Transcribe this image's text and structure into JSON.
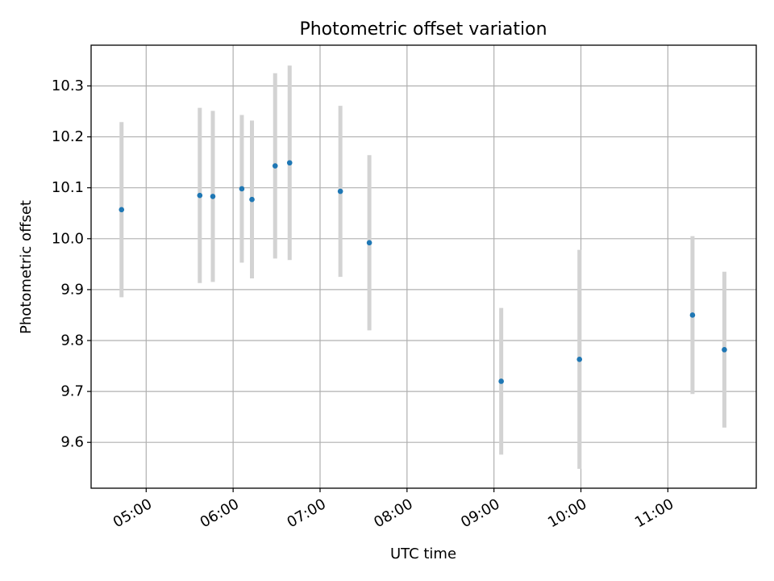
{
  "chart_data": {
    "type": "scatter",
    "title": "Photometric offset variation",
    "xlabel": "UTC time",
    "ylabel": "Photometric offset",
    "xlim": [
      "04:22",
      "12:01"
    ],
    "ylim": [
      9.51,
      10.38
    ],
    "x_ticks": [
      "05:00",
      "06:00",
      "07:00",
      "08:00",
      "09:00",
      "10:00",
      "11:00"
    ],
    "y_ticks": [
      "9.6",
      "9.7",
      "9.8",
      "9.9",
      "10.0",
      "10.1",
      "10.2",
      "10.3"
    ],
    "grid": true,
    "marker_color": "#1f77b4",
    "errorbar_color": "#d3d3d3",
    "series": [
      {
        "points": [
          {
            "x": "04:43",
            "y": 10.057,
            "yerr": 0.172
          },
          {
            "x": "05:37",
            "y": 10.085,
            "yerr": 0.172
          },
          {
            "x": "05:46",
            "y": 10.083,
            "yerr": 0.168
          },
          {
            "x": "06:06",
            "y": 10.098,
            "yerr": 0.145
          },
          {
            "x": "06:13",
            "y": 10.077,
            "yerr": 0.155
          },
          {
            "x": "06:29",
            "y": 10.143,
            "yerr": 0.182
          },
          {
            "x": "06:39",
            "y": 10.149,
            "yerr": 0.191
          },
          {
            "x": "07:14",
            "y": 10.093,
            "yerr": 0.168
          },
          {
            "x": "07:34",
            "y": 9.992,
            "yerr": 0.172
          },
          {
            "x": "09:05",
            "y": 9.72,
            "yerr": 0.144
          },
          {
            "x": "09:59",
            "y": 9.763,
            "yerr": 0.215
          },
          {
            "x": "11:17",
            "y": 9.85,
            "yerr": 0.155
          },
          {
            "x": "11:39",
            "y": 9.782,
            "yerr": 0.153
          }
        ]
      }
    ]
  }
}
